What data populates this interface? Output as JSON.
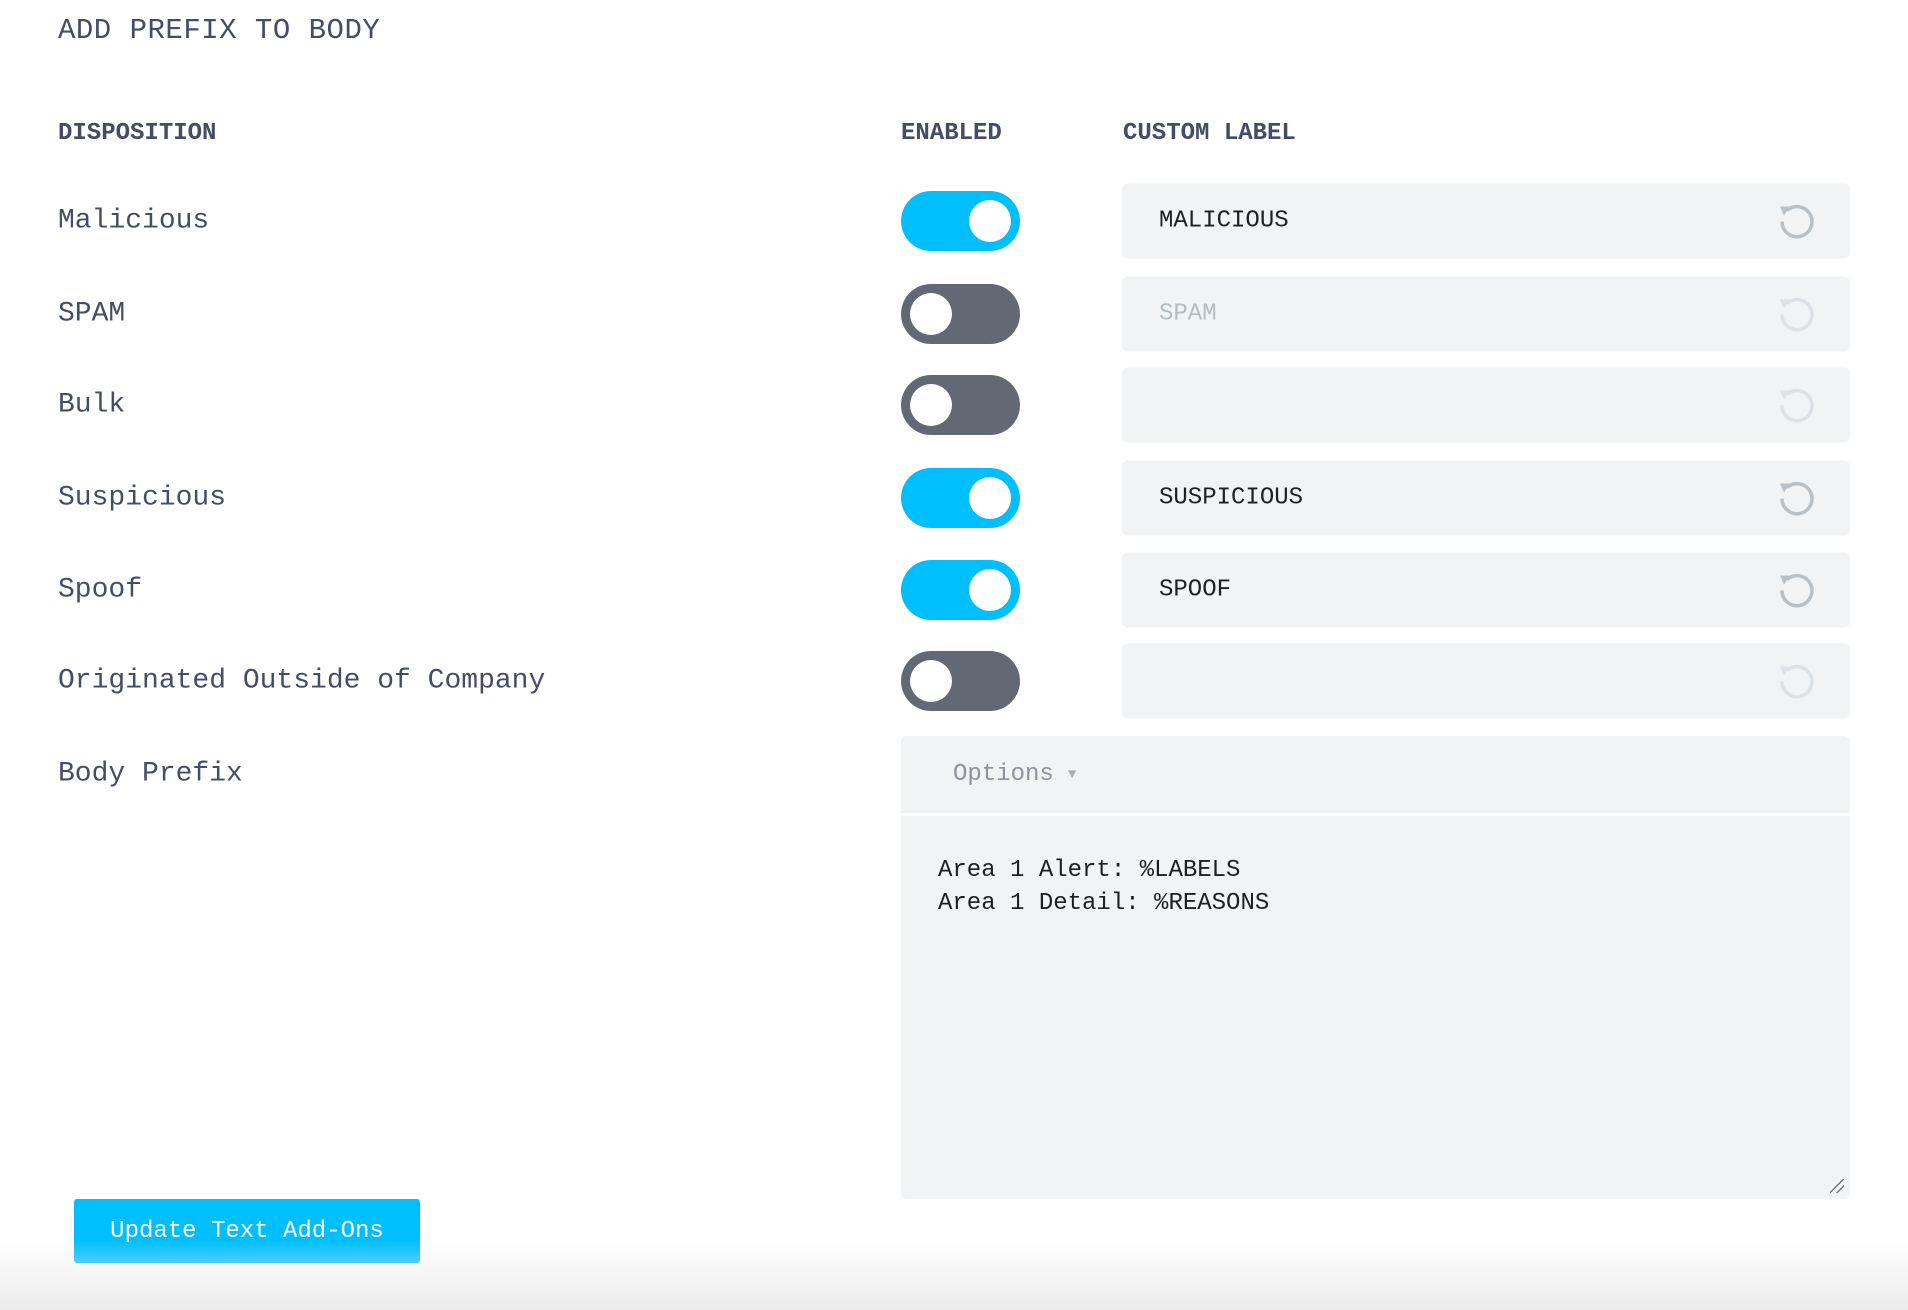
{
  "title": "ADD PREFIX TO BODY",
  "headers": {
    "disposition": "DISPOSITION",
    "enabled": "ENABLED",
    "custom_label": "CUSTOM LABEL"
  },
  "rows": [
    {
      "label": "Malicious",
      "enabled": true,
      "custom_label": "MALICIOUS"
    },
    {
      "label": "SPAM",
      "enabled": false,
      "custom_label": "SPAM"
    },
    {
      "label": "Bulk",
      "enabled": false,
      "custom_label": ""
    },
    {
      "label": "Suspicious",
      "enabled": true,
      "custom_label": "SUSPICIOUS"
    },
    {
      "label": "Spoof",
      "enabled": true,
      "custom_label": "SPOOF"
    },
    {
      "label": "Originated Outside of Company",
      "enabled": false,
      "custom_label": ""
    }
  ],
  "body_prefix": {
    "label": "Body Prefix",
    "options_label": "Options",
    "value": "Area 1 Alert: %LABELS\nArea 1 Detail: %REASONS"
  },
  "submit_label": "Update Text Add-Ons",
  "colors": {
    "toggle_on": "#00bfff",
    "toggle_off": "#636875",
    "button": "#00bfff",
    "text": "#464c63"
  }
}
